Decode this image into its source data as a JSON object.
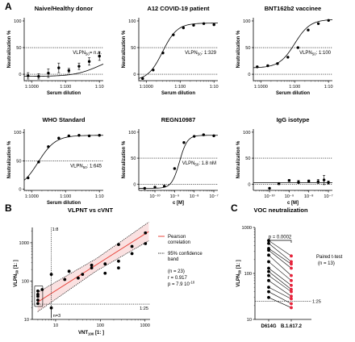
{
  "panel_letters": [
    "A",
    "B",
    "C"
  ],
  "chart_data": [
    {
      "type": "scatter",
      "panel": "A",
      "title": "Naive/Healthy donor",
      "xlabel": "Serum dilution",
      "ylabel": "Neutralization %",
      "xscale": "log",
      "x_ticks": [
        "1:1000",
        "1:100",
        "1:10"
      ],
      "y_ticks": [
        "0",
        "50",
        "100"
      ],
      "ylim": [
        -10,
        100
      ],
      "reference_lines_y": [
        50,
        0
      ],
      "annotation": "VLPN50= n.a.",
      "points": [
        {
          "x": 0.00078,
          "y": -3
        },
        {
          "x": 0.0016,
          "y": -4
        },
        {
          "x": 0.0031,
          "y": 2
        },
        {
          "x": 0.0063,
          "y": 12
        },
        {
          "x": 0.0125,
          "y": 7
        },
        {
          "x": 0.025,
          "y": 15
        },
        {
          "x": 0.05,
          "y": 24
        },
        {
          "x": 0.1,
          "y": 34
        }
      ],
      "error": [
        6,
        5,
        8,
        9,
        4,
        6,
        7,
        8
      ]
    },
    {
      "type": "scatter",
      "panel": "A",
      "title": "A12 COVID-19 patient",
      "xlabel": "Serum dilution",
      "ylabel": "Neutralization %",
      "xscale": "log",
      "x_ticks": [
        "1:1000",
        "1:100",
        "1:10"
      ],
      "y_ticks": [
        "0",
        "50",
        "100"
      ],
      "ylim": [
        -10,
        100
      ],
      "reference_lines_y": [
        50,
        0
      ],
      "annotation": "VLPN50: 1:329",
      "points": [
        {
          "x": 0.00078,
          "y": -8
        },
        {
          "x": 0.0016,
          "y": 8
        },
        {
          "x": 0.0031,
          "y": 40
        },
        {
          "x": 0.0063,
          "y": 74
        },
        {
          "x": 0.0125,
          "y": 87
        },
        {
          "x": 0.025,
          "y": 92
        },
        {
          "x": 0.05,
          "y": 95
        },
        {
          "x": 0.1,
          "y": 93
        }
      ]
    },
    {
      "type": "scatter",
      "panel": "A",
      "title": "BNT162b2 vaccinee",
      "xlabel": "Serum dilution",
      "ylabel": "Neutralization %",
      "xscale": "log",
      "x_ticks": [
        "1:1000",
        "1:100",
        "1:10"
      ],
      "y_ticks": [
        "0",
        "50",
        "100"
      ],
      "ylim": [
        -10,
        100
      ],
      "reference_lines_y": [
        50,
        0
      ],
      "annotation": "VLPN50: 1:100",
      "points": [
        {
          "x": 0.00078,
          "y": 14
        },
        {
          "x": 0.0016,
          "y": 16
        },
        {
          "x": 0.0031,
          "y": 20
        },
        {
          "x": 0.0063,
          "y": 32
        },
        {
          "x": 0.0125,
          "y": 50
        },
        {
          "x": 0.025,
          "y": 83
        },
        {
          "x": 0.05,
          "y": 95
        },
        {
          "x": 0.1,
          "y": 101
        }
      ]
    },
    {
      "type": "scatter",
      "panel": "A",
      "title": "WHO Standard",
      "xlabel": "Serum dilution",
      "ylabel": "Neutralization %",
      "xscale": "log",
      "x_ticks": [
        "1:1000",
        "1:100",
        "1:10"
      ],
      "y_ticks": [
        "0",
        "50",
        "100"
      ],
      "ylim": [
        0,
        100
      ],
      "reference_lines_y": [
        50
      ],
      "annotation": "VLPN50: 1:645",
      "points": [
        {
          "x": 0.00078,
          "y": 20
        },
        {
          "x": 0.0016,
          "y": 48
        },
        {
          "x": 0.0031,
          "y": 75
        },
        {
          "x": 0.0063,
          "y": 90
        },
        {
          "x": 0.0125,
          "y": 94
        },
        {
          "x": 0.025,
          "y": 95
        },
        {
          "x": 0.05,
          "y": 94
        },
        {
          "x": 0.1,
          "y": 95
        }
      ]
    },
    {
      "type": "scatter",
      "panel": "A",
      "title": "REGN10987",
      "xlabel": "c [M]",
      "ylabel": "Neutralization %",
      "xscale": "log",
      "x_ticks": [
        "10⁻¹⁰",
        "10⁻⁹",
        "10⁻⁸",
        "10⁻⁷"
      ],
      "y_ticks": [
        "0",
        "50",
        "100"
      ],
      "ylim": [
        -10,
        100
      ],
      "reference_lines_y": [
        50,
        0
      ],
      "annotation": "VLPN50: 1.8 nM",
      "points": [
        {
          "x": 3e-11,
          "y": -8
        },
        {
          "x": 1e-10,
          "y": -6
        },
        {
          "x": 3e-10,
          "y": -4
        },
        {
          "x": 1e-09,
          "y": 30
        },
        {
          "x": 3e-09,
          "y": 80
        },
        {
          "x": 1e-08,
          "y": 92
        },
        {
          "x": 3e-08,
          "y": 95
        },
        {
          "x": 1e-07,
          "y": 93
        }
      ]
    },
    {
      "type": "scatter",
      "panel": "A",
      "title": "IgG isotype",
      "xlabel": "c [M]",
      "ylabel": "Neutralization %",
      "xscale": "log",
      "x_ticks": [
        "10⁻¹⁰",
        "10⁻⁹",
        "10⁻⁸",
        "10⁻⁷"
      ],
      "y_ticks": [
        "0",
        "50",
        "100"
      ],
      "ylim": [
        -10,
        100
      ],
      "reference_lines_y": [
        50,
        0
      ],
      "points": [
        {
          "x": 1e-10,
          "y": -8
        },
        {
          "x": 3e-10,
          "y": 1
        },
        {
          "x": 1e-09,
          "y": 7
        },
        {
          "x": 3e-09,
          "y": 4
        },
        {
          "x": 1e-08,
          "y": 6
        },
        {
          "x": 3e-08,
          "y": 5
        },
        {
          "x": 6e-08,
          "y": 8
        },
        {
          "x": 1e-07,
          "y": 3
        }
      ],
      "error": [
        0,
        2,
        2,
        3,
        2,
        4,
        9,
        3
      ]
    },
    {
      "type": "scatter",
      "panel": "B",
      "title": "VLPNT vs cVNT",
      "xlabel": "VNT100 [1: ]",
      "ylabel": "VLPN50 [1: ]",
      "xscale": "log",
      "yscale": "log",
      "x_ticks": [
        "10",
        "100",
        "1000"
      ],
      "y_ticks": [
        "10",
        "100",
        "1000"
      ],
      "xlim": [
        3,
        1300
      ],
      "ylim": [
        10,
        2500
      ],
      "annotations": [
        "1:8",
        "1:25",
        "n=3"
      ],
      "legend": [
        "Pearson correlation",
        "95% confidence band"
      ],
      "stats": [
        "(n = 23)",
        "r = 0.917",
        "p = 7.9 10⁻¹⁰"
      ],
      "points": [
        {
          "x": 4,
          "y": 26
        },
        {
          "x": 4,
          "y": 32
        },
        {
          "x": 4,
          "y": 40
        },
        {
          "x": 4,
          "y": 45
        },
        {
          "x": 4,
          "y": 55
        },
        {
          "x": 5,
          "y": 60
        },
        {
          "x": 8,
          "y": 20
        },
        {
          "x": 8,
          "y": 150
        },
        {
          "x": 16,
          "y": 110
        },
        {
          "x": 20,
          "y": 180
        },
        {
          "x": 32,
          "y": 120
        },
        {
          "x": 40,
          "y": 150
        },
        {
          "x": 64,
          "y": 220
        },
        {
          "x": 64,
          "y": 260
        },
        {
          "x": 128,
          "y": 280
        },
        {
          "x": 128,
          "y": 160
        },
        {
          "x": 256,
          "y": 220
        },
        {
          "x": 256,
          "y": 330
        },
        {
          "x": 256,
          "y": 900
        },
        {
          "x": 512,
          "y": 520
        },
        {
          "x": 512,
          "y": 800
        },
        {
          "x": 1024,
          "y": 950
        },
        {
          "x": 1024,
          "y": 1800
        }
      ]
    },
    {
      "type": "line",
      "panel": "C",
      "title": "VOC neutralization",
      "ylabel": "VLPN50 [1: ]",
      "yscale": "log",
      "categories": [
        "D614G",
        "B.1.617.2"
      ],
      "y_ticks": [
        "10",
        "100",
        "1000"
      ],
      "ylim": [
        10,
        1000
      ],
      "annotations": [
        "p = 0.0002",
        "1:25"
      ],
      "stats": [
        "Paired t-test",
        "(n = 13)"
      ],
      "pairs": [
        [
          520,
          240
        ],
        [
          450,
          180
        ],
        [
          350,
          160
        ],
        [
          320,
          130
        ],
        [
          250,
          90
        ],
        [
          180,
          70
        ],
        [
          130,
          55
        ],
        [
          110,
          45
        ],
        [
          90,
          40
        ],
        [
          70,
          32
        ],
        [
          50,
          28
        ],
        [
          40,
          22
        ],
        [
          30,
          18
        ]
      ]
    }
  ]
}
